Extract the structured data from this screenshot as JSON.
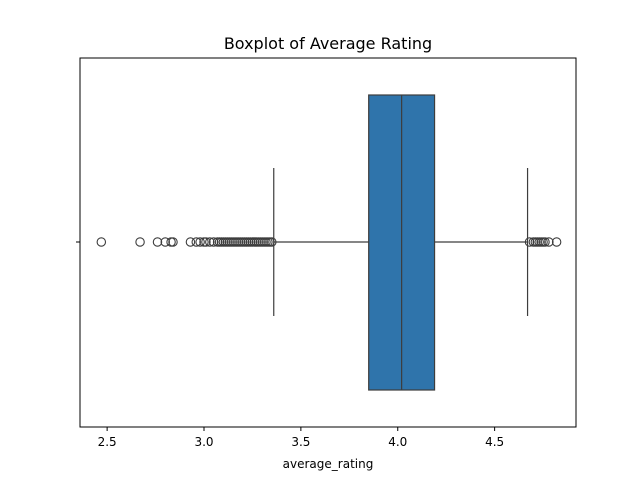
{
  "chart_data": {
    "type": "boxplot",
    "title": "Boxplot of Average Rating",
    "xlabel": "average_rating",
    "ylabel": "",
    "xlim": [
      2.36,
      4.92
    ],
    "xticks": [
      2.5,
      3.0,
      3.5,
      4.0,
      4.5
    ],
    "xtick_labels": [
      "2.5",
      "3.0",
      "3.5",
      "4.0",
      "4.5"
    ],
    "grid": false,
    "box": {
      "whisker_low": 3.36,
      "q1": 3.85,
      "median": 4.02,
      "q3": 4.19,
      "whisker_high": 4.67,
      "fill_color": "#2f74ab",
      "line_color": "#3d3d3d"
    },
    "outliers": [
      2.47,
      2.67,
      2.76,
      2.8,
      2.83,
      2.84,
      2.93,
      2.96,
      2.98,
      3.0,
      3.01,
      3.03,
      3.05,
      3.07,
      3.08,
      3.09,
      3.1,
      3.11,
      3.12,
      3.13,
      3.14,
      3.15,
      3.16,
      3.17,
      3.18,
      3.19,
      3.2,
      3.21,
      3.22,
      3.23,
      3.24,
      3.25,
      3.26,
      3.27,
      3.28,
      3.29,
      3.3,
      3.31,
      3.32,
      3.33,
      3.34,
      3.35,
      4.68,
      4.7,
      4.71,
      4.72,
      4.73,
      4.74,
      4.75,
      4.76,
      4.78,
      4.82
    ]
  }
}
